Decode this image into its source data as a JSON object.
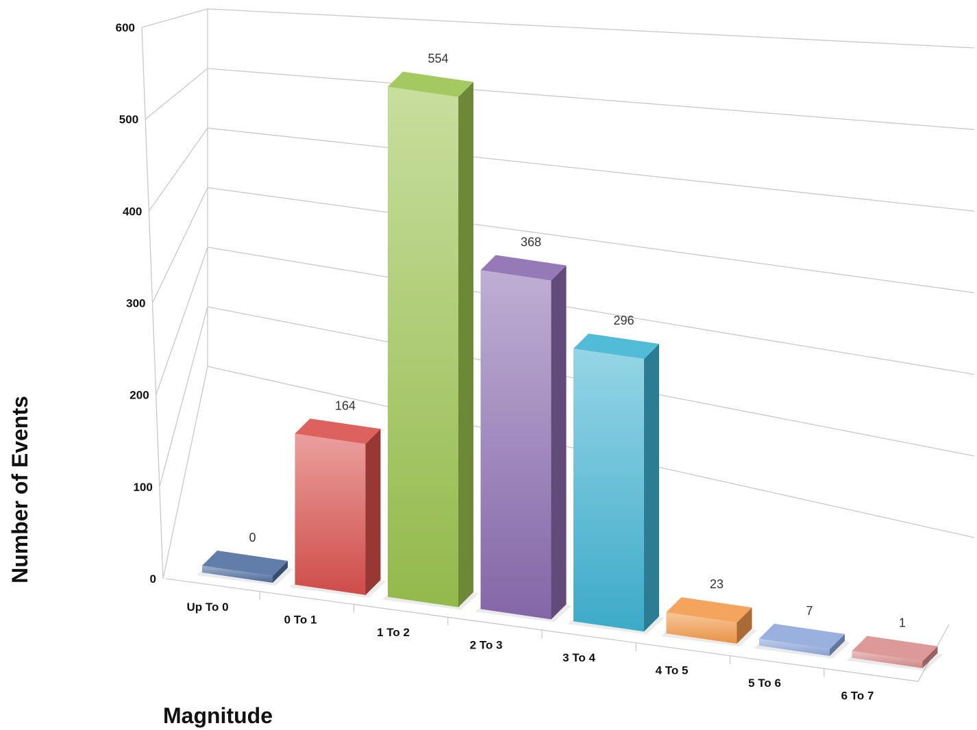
{
  "chart_data": {
    "type": "bar",
    "style": "3d-column",
    "xlabel": "Magnitude",
    "ylabel": "Number of Events",
    "ylim": [
      0,
      600
    ],
    "yticks": [
      "0",
      "100",
      "200",
      "300",
      "400",
      "500",
      "600"
    ],
    "grid": true,
    "legend": "none",
    "categories": [
      "Up To 0",
      "0 To 1",
      "1 To 2",
      "2 To 3",
      "3 To 4",
      "4 To 5",
      "5 To 6",
      "6 To 7"
    ],
    "values": [
      0,
      164,
      554,
      368,
      296,
      23,
      7,
      1
    ],
    "data_labels": [
      "0",
      "164",
      "554",
      "368",
      "296",
      "23",
      "7",
      "1"
    ],
    "colors": [
      "#4f6fa0",
      "#d9504c",
      "#9bc34f",
      "#8a6bb0",
      "#3fb3d2",
      "#f39a4a",
      "#8fa8dc",
      "#d98c8c"
    ]
  }
}
